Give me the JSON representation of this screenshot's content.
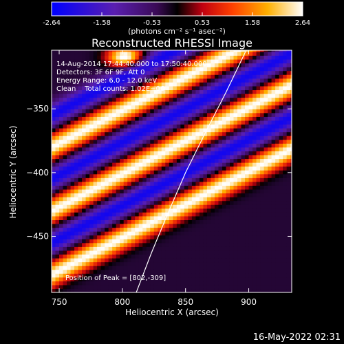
{
  "colorbar": {
    "ticks": [
      "-2.64",
      "-1.58",
      "-0.53",
      "0.53",
      "1.58",
      "2.64"
    ],
    "unit_label": "(photons cm⁻² s⁻¹ asec⁻²)",
    "range": [
      -2.64,
      2.64
    ],
    "colors": [
      "#0000ff",
      "#5a1fb0",
      "#3a0a55",
      "#000000",
      "#c00010",
      "#ff4000",
      "#ffb000",
      "#ffffff"
    ]
  },
  "chart_data": {
    "type": "heatmap",
    "title": "Reconstructed RHESSI Image",
    "xlabel": "Heliocentric X (arcsec)",
    "ylabel": "Heliocentric Y (arcsec)",
    "xlim": [
      744,
      934
    ],
    "ylim": [
      -494,
      -304
    ],
    "x_ticks": [
      750,
      800,
      850,
      900
    ],
    "y_ticks": [
      -350,
      -400,
      -450
    ],
    "x_tick_labels": [
      "750",
      "800",
      "850",
      "900"
    ],
    "y_tick_labels": [
      "−350",
      "−400",
      "−450"
    ],
    "peak": [
      802,
      -309
    ],
    "limb_curve": [
      [
        811,
        -494
      ],
      [
        823,
        -463
      ],
      [
        836,
        -432
      ],
      [
        850,
        -400
      ],
      [
        866,
        -368
      ],
      [
        882,
        -337
      ],
      [
        898,
        -304
      ]
    ],
    "bright_bands_y_at_x744": [
      -380,
      -430,
      -480
    ],
    "dark_bands_y_at_x744": [
      -355,
      -405,
      -455
    ],
    "band_slope": 0.52
  },
  "annotations": {
    "line1": "14-Aug-2014 17:44:40.000 to 17:50:40.000",
    "line2": "Detectors: 3F 6F 9F, Att 0",
    "line3": "Energy Range: 6.0 - 12.0 keV",
    "line4": "Clean    Total counts: 1.02E+06",
    "peak_label": "Position of Peak = [802,-309]"
  },
  "timestamp": "16-May-2022 02:31"
}
